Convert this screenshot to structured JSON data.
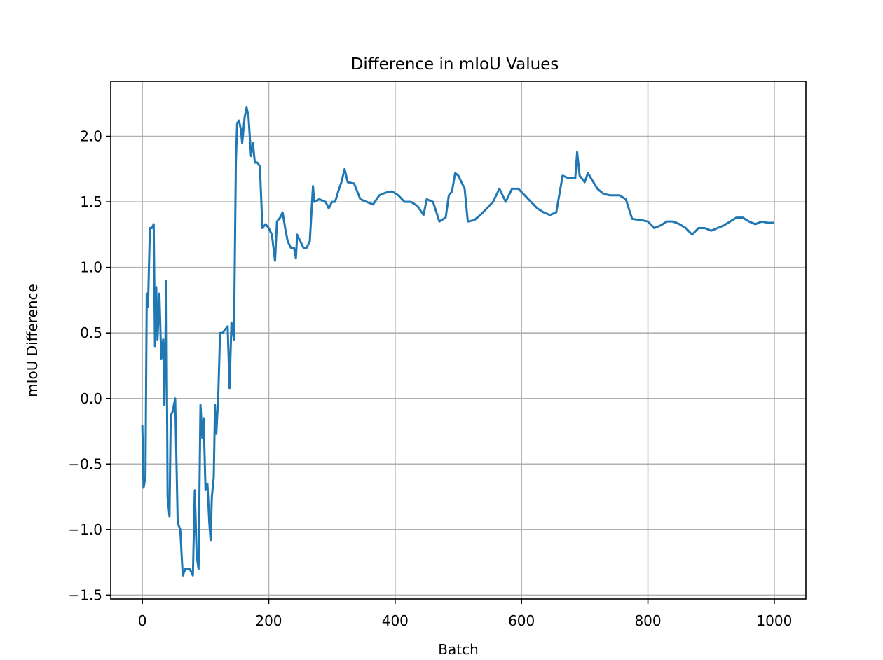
{
  "chart_data": {
    "type": "line",
    "title": "Difference in mIoU Values",
    "x_label": "Batch",
    "y_label": "mIoU Difference",
    "x": [
      0,
      2,
      5,
      7,
      9,
      12,
      15,
      18,
      20,
      22,
      24,
      27,
      30,
      33,
      35,
      38,
      40,
      43,
      45,
      48,
      52,
      56,
      60,
      64,
      68,
      75,
      80,
      83,
      86,
      89,
      92,
      95,
      97,
      100,
      103,
      106,
      108,
      110,
      113,
      115,
      117,
      120,
      123,
      127,
      130,
      135,
      138,
      141,
      145,
      148,
      150,
      153,
      156,
      158,
      162,
      165,
      168,
      172,
      175,
      178,
      182,
      186,
      190,
      195,
      200,
      205,
      210,
      213,
      218,
      222,
      226,
      230,
      235,
      240,
      243,
      245,
      250,
      255,
      260,
      265,
      270,
      272,
      280,
      290,
      295,
      300,
      305,
      310,
      315,
      320,
      325,
      335,
      345,
      355,
      365,
      375,
      385,
      395,
      405,
      415,
      425,
      435,
      445,
      450,
      460,
      470,
      480,
      485,
      490,
      495,
      500,
      505,
      510,
      515,
      525,
      535,
      545,
      555,
      565,
      575,
      585,
      595,
      605,
      615,
      625,
      635,
      645,
      655,
      665,
      675,
      685,
      688,
      692,
      700,
      705,
      710,
      720,
      730,
      740,
      755,
      765,
      775,
      790,
      800,
      810,
      820,
      830,
      840,
      850,
      860,
      870,
      880,
      890,
      900,
      910,
      920,
      930,
      940,
      950,
      960,
      970,
      980,
      990,
      1000
    ],
    "series": [
      {
        "name": "mIoU Difference",
        "color": "#1f77b4",
        "values": [
          -0.2,
          -0.68,
          -0.6,
          0.8,
          0.7,
          1.3,
          1.3,
          1.33,
          0.4,
          0.85,
          0.45,
          0.8,
          0.3,
          0.45,
          -0.05,
          0.9,
          -0.75,
          -0.9,
          -0.13,
          -0.1,
          0.0,
          -0.95,
          -1.0,
          -1.35,
          -1.3,
          -1.3,
          -1.35,
          -0.7,
          -1.2,
          -1.3,
          -0.05,
          -0.3,
          -0.15,
          -0.7,
          -0.65,
          -0.95,
          -1.08,
          -0.75,
          -0.6,
          -0.05,
          -0.27,
          0.0,
          0.5,
          0.5,
          0.52,
          0.55,
          0.08,
          0.58,
          0.45,
          1.8,
          2.1,
          2.12,
          2.05,
          1.95,
          2.15,
          2.22,
          2.15,
          1.85,
          1.95,
          1.8,
          1.8,
          1.77,
          1.3,
          1.33,
          1.3,
          1.25,
          1.05,
          1.35,
          1.38,
          1.42,
          1.3,
          1.2,
          1.15,
          1.15,
          1.07,
          1.25,
          1.2,
          1.15,
          1.15,
          1.2,
          1.62,
          1.5,
          1.52,
          1.5,
          1.45,
          1.5,
          1.5,
          1.58,
          1.65,
          1.75,
          1.65,
          1.64,
          1.52,
          1.5,
          1.48,
          1.55,
          1.57,
          1.58,
          1.55,
          1.5,
          1.5,
          1.47,
          1.4,
          1.52,
          1.5,
          1.35,
          1.38,
          1.55,
          1.58,
          1.72,
          1.7,
          1.65,
          1.6,
          1.35,
          1.36,
          1.4,
          1.45,
          1.5,
          1.6,
          1.5,
          1.6,
          1.6,
          1.55,
          1.5,
          1.45,
          1.42,
          1.4,
          1.42,
          1.7,
          1.68,
          1.68,
          1.88,
          1.7,
          1.65,
          1.72,
          1.68,
          1.6,
          1.56,
          1.55,
          1.55,
          1.52,
          1.37,
          1.36,
          1.35,
          1.3,
          1.32,
          1.35,
          1.35,
          1.33,
          1.3,
          1.25,
          1.3,
          1.3,
          1.28,
          1.3,
          1.32,
          1.35,
          1.38,
          1.38,
          1.35,
          1.33,
          1.35,
          1.34,
          1.34
        ]
      }
    ],
    "xlim": [
      -50,
      1050
    ],
    "ylim": [
      -1.53,
      2.42
    ],
    "xticks": [
      0,
      200,
      400,
      600,
      800,
      1000
    ],
    "yticks": [
      {
        "value": -1.5,
        "label": "−1.5"
      },
      {
        "value": -1.0,
        "label": "−1.0"
      },
      {
        "value": -0.5,
        "label": "−0.5"
      },
      {
        "value": 0.0,
        "label": "0.0"
      },
      0.5,
      {
        "value": 1.0,
        "label": "1.0"
      },
      1.5,
      {
        "value": 2.0,
        "label": "2.0"
      }
    ],
    "grid": true
  }
}
